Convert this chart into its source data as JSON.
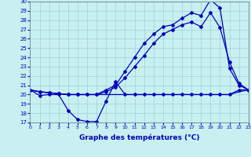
{
  "xlabel": "Graphe des températures (°C)",
  "background_color": "#c8f0f0",
  "line_color": "#0000bb",
  "grid_color": "#a0d0d8",
  "xlim": [
    0,
    23
  ],
  "ylim": [
    17,
    30
  ],
  "yticks": [
    17,
    18,
    19,
    20,
    21,
    22,
    23,
    24,
    25,
    26,
    27,
    28,
    29,
    30
  ],
  "xticks": [
    0,
    1,
    2,
    3,
    4,
    5,
    6,
    7,
    8,
    9,
    10,
    11,
    12,
    13,
    14,
    15,
    16,
    17,
    18,
    19,
    20,
    21,
    22,
    23
  ],
  "hours_all": [
    0,
    1,
    2,
    3,
    4,
    5,
    6,
    7,
    8,
    9,
    10,
    11,
    12,
    13,
    14,
    15,
    16,
    17,
    18,
    19,
    20,
    21,
    22,
    23
  ],
  "line_dip": [
    20.5,
    19.9,
    20.0,
    20.0,
    18.3,
    17.3,
    17.1,
    17.1,
    19.3,
    21.4,
    20.0,
    20.0,
    20.0,
    20.0,
    20.0,
    20.0,
    20.0,
    20.0,
    20.0,
    20.0,
    20.0,
    20.0,
    20.5,
    20.5
  ],
  "line_flat": [
    20.5,
    20.3,
    20.2,
    20.1,
    20.0,
    20.0,
    20.0,
    20.0,
    20.0,
    20.0,
    20.0,
    20.0,
    20.0,
    20.0,
    20.0,
    20.0,
    20.0,
    20.0,
    20.0,
    20.0,
    20.0,
    20.0,
    20.3,
    20.5
  ],
  "line_upper": [
    20.5,
    20.3,
    20.2,
    20.1,
    20.0,
    20.0,
    20.0,
    20.0,
    20.5,
    21.0,
    22.5,
    24.0,
    25.5,
    26.5,
    27.3,
    27.5,
    28.2,
    28.8,
    28.5,
    30.2,
    29.3,
    22.8,
    21.0,
    20.5
  ],
  "line_mid": [
    20.5,
    20.3,
    20.2,
    20.1,
    20.0,
    20.0,
    20.0,
    20.0,
    20.3,
    20.8,
    21.8,
    23.0,
    24.2,
    25.5,
    26.5,
    27.0,
    27.5,
    27.8,
    27.3,
    28.8,
    27.2,
    23.5,
    21.2,
    20.5
  ]
}
